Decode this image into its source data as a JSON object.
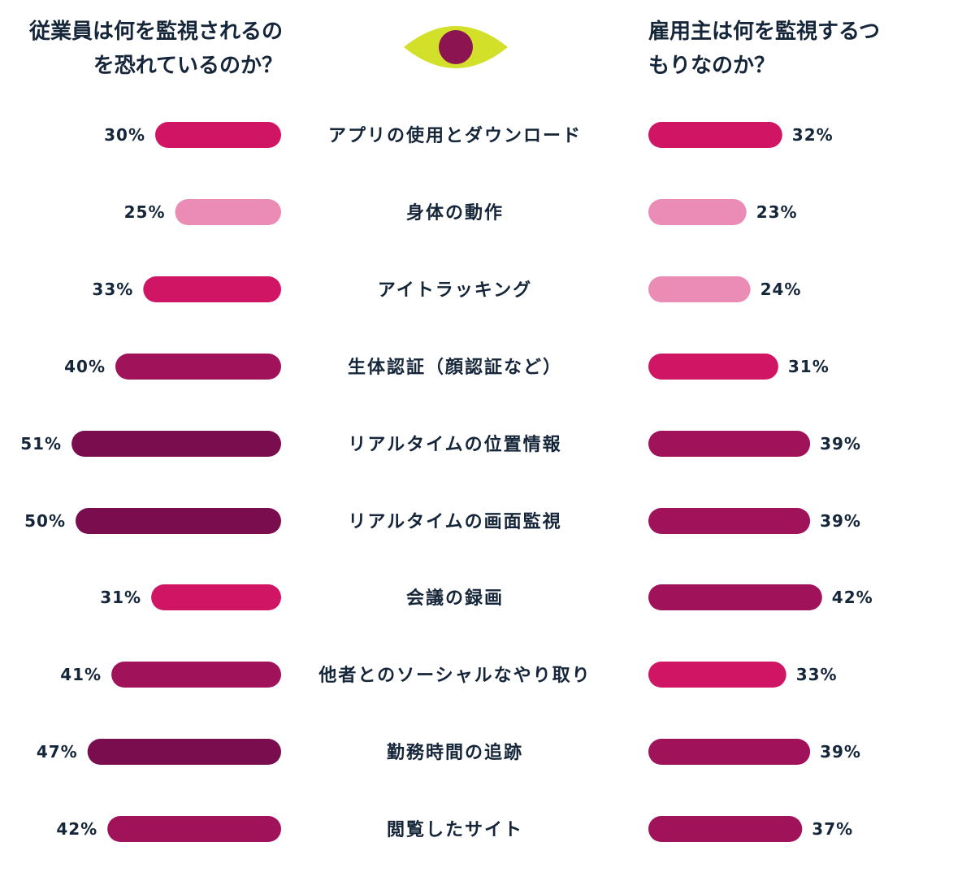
{
  "chart_data": {
    "type": "bar",
    "layout": "butterfly",
    "left_title": "従業員は何を監視されるのを恐れているのか？",
    "right_title": "雇用主は何を監視するつもりなのか？",
    "categories": [
      "アプリの使用とダウンロード",
      "身体の動作",
      "アイトラッキング",
      "生体認証（顔認証など）",
      "リアルタイムの位置情報",
      "リアルタイムの画面監視",
      "会議の録画",
      "他者とのソーシャルなやり取り",
      "勤務時間の追跡",
      "閲覧したサイト"
    ],
    "series": [
      {
        "values": [
          30,
          25,
          33,
          40,
          51,
          50,
          31,
          41,
          47,
          42
        ]
      },
      {
        "values": [
          32,
          23,
          24,
          31,
          39,
          39,
          42,
          33,
          39,
          37
        ]
      }
    ],
    "value_labels": {
      "left": [
        "30%",
        "25%",
        "33%",
        "40%",
        "51%",
        "50%",
        "31%",
        "41%",
        "47%",
        "42%"
      ],
      "right": [
        "32%",
        "23%",
        "24%",
        "31%",
        "39%",
        "39%",
        "42%",
        "33%",
        "39%",
        "37%"
      ]
    },
    "color_scale": [
      {
        "min": 0,
        "max": 24,
        "color": "#eb8cb6"
      },
      {
        "min": 25,
        "max": 34,
        "color": "#d11565"
      },
      {
        "min": 35,
        "max": 44,
        "color": "#a0125a"
      },
      {
        "min": 45,
        "max": 100,
        "color": "#7a0d4d"
      }
    ],
    "left_overrides": {
      "1": "#eb8cb6"
    },
    "colors": {
      "text": "#16263a",
      "eye_outer": "#d3e02a",
      "eye_iris": "#8c1451"
    },
    "icon": "eye-icon"
  }
}
